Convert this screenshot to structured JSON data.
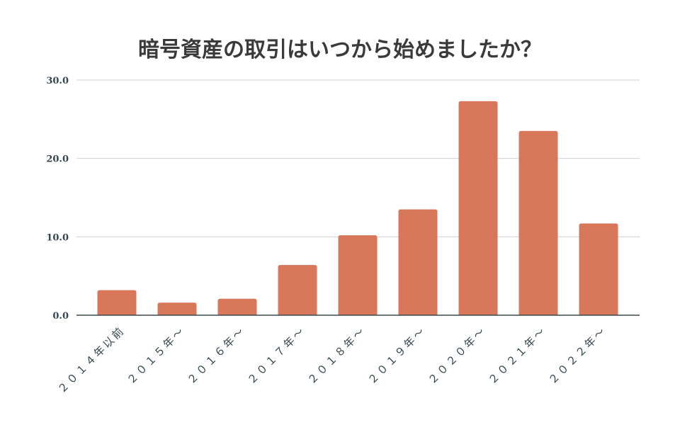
{
  "chart_data": {
    "type": "bar",
    "title": "暗号資産の取引はいつから始めましたか？",
    "xlabel": "",
    "ylabel": "",
    "categories": [
      "２０１４年以前",
      "２０１５年〜",
      "２０１６年〜",
      "２０１７年〜",
      "２０１８年〜",
      "２０１９年〜",
      "２０２０年〜",
      "２０２１年〜",
      "２０２２年〜"
    ],
    "values": [
      3.2,
      1.6,
      2.1,
      6.4,
      10.2,
      13.5,
      27.3,
      23.5,
      11.7
    ],
    "ylim": [
      0,
      30
    ],
    "yticks": [
      "0.0",
      "10.0",
      "20.0",
      "30.0"
    ],
    "ytick_values": [
      0,
      10,
      20,
      30
    ],
    "grid": true,
    "legend": "none",
    "bar_color": "#D8775A"
  }
}
